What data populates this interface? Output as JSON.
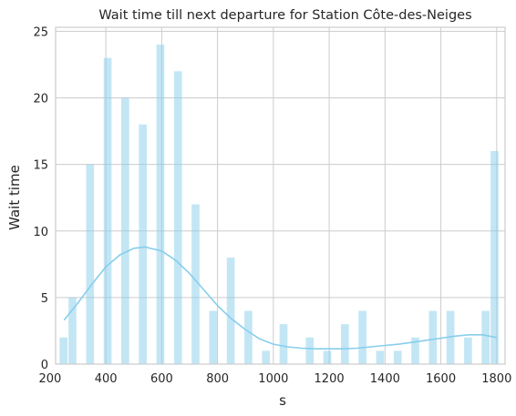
{
  "chart_data": {
    "type": "bar",
    "title": "Wait time till next departure for Station Côte-des-Neiges",
    "xlabel": "s",
    "ylabel": "Wait time",
    "xlim": [
      220,
      1830
    ],
    "ylim": [
      0,
      25.3
    ],
    "xticks": [
      200,
      400,
      600,
      800,
      1000,
      1200,
      1400,
      1600,
      1800
    ],
    "yticks": [
      0,
      5,
      10,
      15,
      20,
      25
    ],
    "grid": true,
    "color": "#87ceeb",
    "bin_width": 31.5,
    "bins": [
      {
        "x": 250,
        "count": 2
      },
      {
        "x": 282,
        "count": 5
      },
      {
        "x": 345,
        "count": 15
      },
      {
        "x": 408,
        "count": 23
      },
      {
        "x": 471,
        "count": 20
      },
      {
        "x": 534,
        "count": 18
      },
      {
        "x": 597,
        "count": 24
      },
      {
        "x": 660,
        "count": 22
      },
      {
        "x": 723,
        "count": 12
      },
      {
        "x": 786,
        "count": 4
      },
      {
        "x": 849,
        "count": 8
      },
      {
        "x": 912,
        "count": 4
      },
      {
        "x": 975,
        "count": 1
      },
      {
        "x": 1038,
        "count": 3
      },
      {
        "x": 1132,
        "count": 2
      },
      {
        "x": 1195,
        "count": 1
      },
      {
        "x": 1258,
        "count": 3
      },
      {
        "x": 1321,
        "count": 4
      },
      {
        "x": 1384,
        "count": 1
      },
      {
        "x": 1447,
        "count": 1
      },
      {
        "x": 1510,
        "count": 2
      },
      {
        "x": 1573,
        "count": 4
      },
      {
        "x": 1636,
        "count": 4
      },
      {
        "x": 1699,
        "count": 2
      },
      {
        "x": 1762,
        "count": 4
      },
      {
        "x": 1794,
        "count": 16
      }
    ],
    "kde": [
      [
        250,
        3.3
      ],
      [
        300,
        4.6
      ],
      [
        350,
        6.0
      ],
      [
        400,
        7.3
      ],
      [
        450,
        8.2
      ],
      [
        500,
        8.7
      ],
      [
        540,
        8.8
      ],
      [
        600,
        8.5
      ],
      [
        650,
        7.8
      ],
      [
        700,
        6.8
      ],
      [
        750,
        5.6
      ],
      [
        800,
        4.4
      ],
      [
        850,
        3.4
      ],
      [
        900,
        2.6
      ],
      [
        950,
        1.9
      ],
      [
        1000,
        1.5
      ],
      [
        1050,
        1.3
      ],
      [
        1100,
        1.2
      ],
      [
        1150,
        1.15
      ],
      [
        1200,
        1.15
      ],
      [
        1250,
        1.15
      ],
      [
        1300,
        1.2
      ],
      [
        1350,
        1.3
      ],
      [
        1400,
        1.4
      ],
      [
        1450,
        1.5
      ],
      [
        1500,
        1.65
      ],
      [
        1550,
        1.8
      ],
      [
        1600,
        1.95
      ],
      [
        1650,
        2.1
      ],
      [
        1700,
        2.2
      ],
      [
        1750,
        2.2
      ],
      [
        1800,
        2.0
      ]
    ]
  }
}
